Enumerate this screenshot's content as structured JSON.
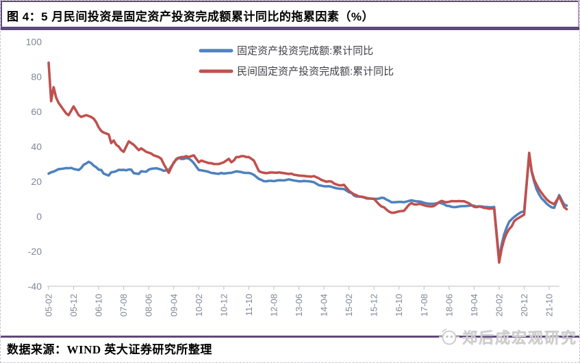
{
  "title": "图 4：5 月民间投资是固定资产投资完成额累计同比的拖累因素（%）",
  "source_line": "数据来源：WIND  英大证券研究所整理",
  "watermark": "郑后成宏观研究",
  "colors": {
    "accent_purple": "#5f497a",
    "series_total_blue": "#4f81bd",
    "series_private_red": "#c0504d",
    "axis_line": "#bfbfbf",
    "tick_label": "#7f8796",
    "legend_text": "#3f3f46",
    "watermark_gray": "#cdcdcd"
  },
  "chart_data": {
    "type": "line",
    "title": "图 4：5 月民间投资是固定资产投资完成额累计同比的拖累因素（%）",
    "xlabel": "",
    "ylabel": "",
    "ylim": [
      -40,
      100
    ],
    "y_ticks": [
      100,
      80,
      60,
      40,
      20,
      0,
      -20,
      -40
    ],
    "x_tick_labels": [
      "05-02",
      "05-12",
      "06-10",
      "07-08",
      "08-06",
      "09-04",
      "10-02",
      "10-12",
      "11-10",
      "12-08",
      "13-06",
      "14-04",
      "15-02",
      "15-12",
      "16-10",
      "17-08",
      "18-06",
      "19-04",
      "20-02",
      "20-12",
      "21-10"
    ],
    "grid": false,
    "legend_position": "top-center",
    "dates": [
      "05-02",
      "05-03",
      "05-04",
      "05-05",
      "05-06",
      "05-07",
      "05-08",
      "05-09",
      "05-10",
      "05-11",
      "05-12",
      "06-02",
      "06-03",
      "06-04",
      "06-05",
      "06-06",
      "06-07",
      "06-08",
      "06-09",
      "06-10",
      "06-11",
      "06-12",
      "07-02",
      "07-03",
      "07-04",
      "07-05",
      "07-06",
      "07-07",
      "07-08",
      "07-09",
      "07-10",
      "07-11",
      "07-12",
      "08-02",
      "08-03",
      "08-04",
      "08-05",
      "08-06",
      "08-07",
      "08-08",
      "08-09",
      "08-10",
      "08-11",
      "08-12",
      "09-02",
      "09-03",
      "09-04",
      "09-05",
      "09-06",
      "09-07",
      "09-08",
      "09-09",
      "09-10",
      "09-11",
      "09-12",
      "10-02",
      "10-03",
      "10-04",
      "10-05",
      "10-06",
      "10-07",
      "10-08",
      "10-09",
      "10-10",
      "10-11",
      "10-12",
      "11-02",
      "11-03",
      "11-04",
      "11-05",
      "11-06",
      "11-07",
      "11-08",
      "11-09",
      "11-10",
      "11-11",
      "11-12",
      "12-02",
      "12-03",
      "12-04",
      "12-05",
      "12-06",
      "12-07",
      "12-08",
      "12-09",
      "12-10",
      "12-11",
      "12-12",
      "13-02",
      "13-03",
      "13-04",
      "13-05",
      "13-06",
      "13-07",
      "13-08",
      "13-09",
      "13-10",
      "13-11",
      "13-12",
      "14-02",
      "14-03",
      "14-04",
      "14-05",
      "14-06",
      "14-07",
      "14-08",
      "14-09",
      "14-10",
      "14-11",
      "14-12",
      "15-02",
      "15-03",
      "15-04",
      "15-05",
      "15-06",
      "15-07",
      "15-08",
      "15-09",
      "15-10",
      "15-11",
      "15-12",
      "16-02",
      "16-03",
      "16-04",
      "16-05",
      "16-06",
      "16-07",
      "16-08",
      "16-09",
      "16-10",
      "16-11",
      "16-12",
      "17-02",
      "17-03",
      "17-04",
      "17-05",
      "17-06",
      "17-07",
      "17-08",
      "17-09",
      "17-10",
      "17-11",
      "17-12",
      "18-02",
      "18-03",
      "18-04",
      "18-05",
      "18-06",
      "18-07",
      "18-08",
      "18-09",
      "18-10",
      "18-11",
      "18-12",
      "19-02",
      "19-03",
      "19-04",
      "19-05",
      "19-06",
      "19-07",
      "19-08",
      "19-09",
      "19-10",
      "19-11",
      "19-12",
      "20-02",
      "20-03",
      "20-04",
      "20-05",
      "20-06",
      "20-07",
      "20-08",
      "20-09",
      "20-10",
      "20-11",
      "20-12",
      "21-02",
      "21-03",
      "21-04",
      "21-05",
      "21-06",
      "21-07",
      "21-08",
      "21-09",
      "21-10",
      "21-11",
      "21-12",
      "22-02",
      "22-03",
      "22-04",
      "22-05"
    ],
    "series": [
      {
        "name": "固定资产投资完成额:累计同比",
        "color": "#4f81bd",
        "values": [
          24.5,
          25.3,
          25.7,
          26.4,
          27.1,
          27.2,
          27.4,
          27.7,
          27.6,
          27.8,
          27.2,
          26.6,
          27.7,
          29.6,
          30.3,
          31.3,
          30.5,
          29.1,
          28.2,
          26.8,
          26.6,
          24.5,
          23.4,
          25.3,
          25.5,
          25.9,
          26.7,
          26.6,
          26.7,
          26.4,
          26.9,
          26.8,
          24.8,
          24.3,
          25.9,
          25.7,
          25.6,
          26.8,
          27.3,
          27.4,
          27.6,
          27.2,
          26.8,
          26.1,
          26.5,
          28.6,
          30.5,
          32.9,
          33.6,
          32.9,
          33.0,
          33.4,
          33.1,
          32.1,
          30.5,
          26.6,
          26.4,
          26.1,
          25.9,
          25.5,
          24.9,
          24.8,
          24.5,
          24.4,
          24.9,
          24.5,
          24.9,
          25.0,
          25.4,
          25.8,
          25.6,
          25.4,
          25.0,
          24.9,
          24.9,
          24.5,
          23.8,
          21.5,
          20.9,
          20.2,
          20.1,
          20.4,
          20.4,
          20.2,
          20.5,
          20.7,
          20.7,
          20.6,
          21.2,
          20.9,
          20.6,
          20.4,
          20.1,
          20.1,
          20.3,
          20.2,
          20.1,
          19.9,
          19.6,
          17.9,
          17.6,
          17.3,
          17.2,
          17.3,
          17.0,
          16.5,
          16.1,
          15.9,
          15.8,
          15.7,
          13.9,
          13.5,
          12.0,
          11.4,
          11.4,
          11.2,
          10.9,
          10.3,
          10.2,
          10.2,
          10.0,
          10.2,
          10.7,
          10.5,
          9.6,
          9.0,
          8.1,
          8.1,
          8.2,
          8.3,
          8.3,
          8.1,
          8.9,
          9.2,
          8.9,
          8.6,
          8.6,
          8.3,
          7.8,
          7.5,
          7.3,
          7.2,
          7.2,
          7.9,
          7.5,
          7.0,
          6.1,
          6.0,
          5.5,
          5.3,
          5.4,
          5.7,
          5.9,
          5.9,
          6.1,
          6.3,
          6.1,
          5.6,
          5.8,
          5.7,
          5.5,
          5.4,
          5.2,
          5.2,
          5.4,
          -24.5,
          -16.1,
          -10.3,
          -6.3,
          -3.1,
          -1.6,
          -0.3,
          0.8,
          1.8,
          2.6,
          2.9,
          35.0,
          25.6,
          19.9,
          15.4,
          12.6,
          10.3,
          8.9,
          7.3,
          6.1,
          5.2,
          4.9,
          12.2,
          9.3,
          6.8,
          6.2
        ]
      },
      {
        "name": "民间固定资产投资完成额:累计同比",
        "color": "#c0504d",
        "values": [
          88.0,
          66.0,
          74.0,
          68.0,
          65.0,
          63.0,
          61.0,
          59.0,
          58.0,
          60.5,
          63.0,
          58.0,
          57.0,
          57.5,
          58.0,
          57.5,
          57.0,
          56.0,
          54.0,
          51.0,
          49.0,
          48.0,
          47.0,
          42.0,
          43.5,
          41.0,
          40.0,
          38.0,
          37.0,
          40.0,
          43.0,
          42.0,
          41.0,
          38.0,
          39.0,
          38.0,
          37.0,
          36.5,
          36.0,
          35.0,
          34.5,
          34.0,
          33.0,
          30.0,
          25.0,
          28.0,
          31.0,
          32.5,
          33.5,
          34.0,
          34.0,
          34.5,
          34.0,
          34.5,
          35.0,
          31.0,
          32.0,
          31.5,
          31.0,
          30.5,
          30.5,
          30.0,
          30.0,
          30.0,
          30.5,
          31.0,
          33.0,
          31.0,
          32.0,
          34.0,
          34.0,
          34.5,
          34.5,
          34.0,
          34.0,
          33.0,
          32.0,
          26.0,
          25.3,
          25.0,
          24.8,
          25.0,
          25.2,
          25.1,
          25.0,
          25.2,
          25.0,
          24.8,
          24.3,
          24.5,
          23.9,
          23.7,
          23.4,
          23.3,
          23.2,
          23.0,
          22.9,
          22.8,
          23.1,
          21.8,
          20.9,
          20.4,
          19.9,
          20.1,
          20.0,
          18.9,
          18.3,
          17.9,
          17.8,
          18.1,
          14.7,
          13.6,
          12.7,
          12.1,
          11.4,
          11.3,
          11.0,
          10.6,
          10.4,
          10.2,
          10.1,
          6.9,
          5.7,
          5.2,
          3.9,
          2.8,
          2.1,
          2.1,
          2.5,
          2.9,
          3.1,
          3.2,
          6.7,
          7.7,
          6.9,
          6.8,
          7.2,
          6.9,
          6.4,
          6.0,
          5.8,
          5.7,
          6.0,
          8.1,
          8.9,
          8.4,
          8.1,
          8.4,
          8.8,
          8.7,
          8.7,
          8.8,
          8.7,
          8.7,
          7.5,
          6.4,
          5.5,
          5.3,
          5.7,
          5.4,
          4.9,
          4.7,
          4.4,
          4.5,
          4.7,
          -26.4,
          -18.5,
          -13.3,
          -9.6,
          -7.3,
          -5.7,
          -2.8,
          -1.5,
          -0.7,
          0.2,
          1.0,
          36.4,
          26.0,
          21.0,
          18.1,
          15.4,
          13.4,
          11.5,
          9.8,
          8.5,
          7.7,
          7.0,
          11.4,
          8.4,
          5.3,
          4.1
        ]
      }
    ]
  }
}
